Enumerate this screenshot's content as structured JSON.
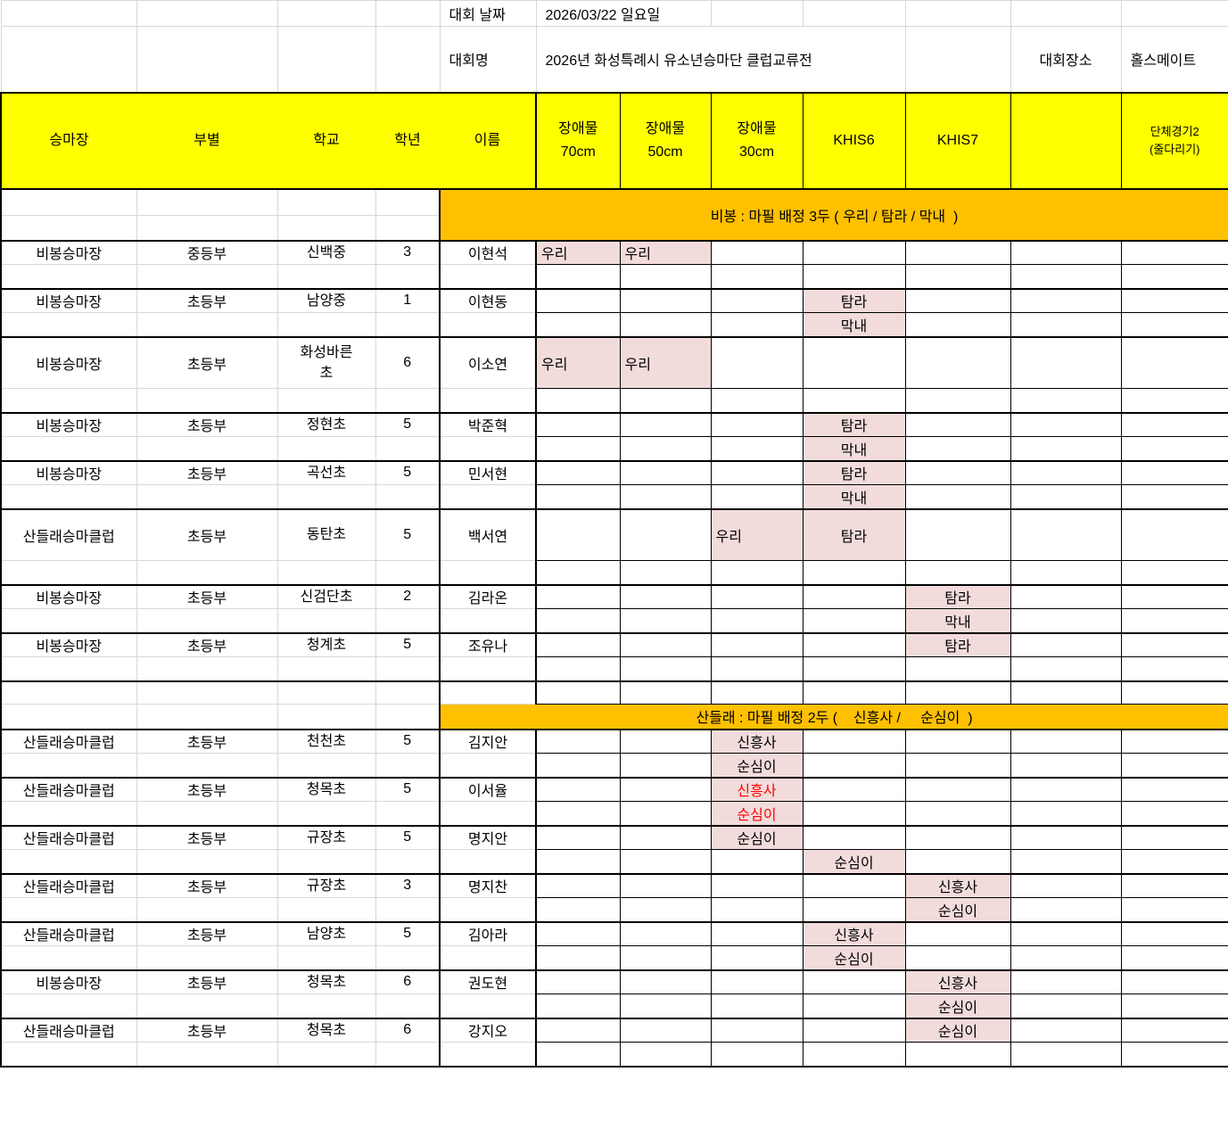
{
  "meta": {
    "date_label": "대회 날짜",
    "date_value": "2026/03/22 일요일",
    "name_label": "대회명",
    "name_value": "2026년 화성특례시 유소년승마단 클럽교류전",
    "venue_label": "대회장소",
    "venue_value": "홀스메이트"
  },
  "header": {
    "columns": [
      "승마장",
      "부별",
      "학교",
      "학년",
      "이름",
      "장애물\n70cm",
      "장애물\n50cm",
      "장애물\n30cm",
      "KHIS6",
      "KHIS7",
      "",
      "단체경기2\n(줄다리기)"
    ]
  },
  "sections": [
    {
      "banner": "비봉 : 마필 배정 3두 ( 우리 / 탐라 / 막내  )",
      "horses": [
        "우리",
        "탐라",
        "막내"
      ],
      "groups": [
        {
          "venue": "비봉승마장",
          "division": "중등부",
          "school": "신백중",
          "grade": "3",
          "name": "이현석",
          "tall": false,
          "rows": [
            [
              {
                "col": "j70",
                "text": "우리",
                "align": "left"
              },
              {
                "col": "j50",
                "text": "우리",
                "align": "left"
              }
            ],
            []
          ]
        },
        {
          "venue": "비봉승마장",
          "division": "초등부",
          "school": "남양중",
          "grade": "1",
          "name": "이현동",
          "tall": false,
          "rows": [
            [
              {
                "col": "khis6",
                "text": "탐라"
              }
            ],
            [
              {
                "col": "khis6",
                "text": "막내"
              }
            ]
          ]
        },
        {
          "venue": "비봉승마장",
          "division": "초등부",
          "school": "화성바른\n초",
          "grade": "6",
          "name": "이소연",
          "tall": true,
          "rows": [
            [
              {
                "col": "j70",
                "text": "우리",
                "align": "left"
              },
              {
                "col": "j50",
                "text": "우리",
                "align": "left"
              }
            ],
            []
          ]
        },
        {
          "venue": "비봉승마장",
          "division": "초등부",
          "school": "정현초",
          "grade": "5",
          "name": "박준혁",
          "tall": false,
          "rows": [
            [
              {
                "col": "khis6",
                "text": "탐라"
              }
            ],
            [
              {
                "col": "khis6",
                "text": "막내"
              }
            ]
          ]
        },
        {
          "venue": "비봉승마장",
          "division": "초등부",
          "school": "곡선초",
          "grade": "5",
          "name": "민서현",
          "tall": false,
          "rows": [
            [
              {
                "col": "khis6",
                "text": "탐라"
              }
            ],
            [
              {
                "col": "khis6",
                "text": "막내"
              }
            ]
          ]
        },
        {
          "venue": "산들래승마클럽",
          "division": "초등부",
          "school": "동탄초",
          "grade": "5",
          "name": "백서연",
          "tall": true,
          "rows": [
            [
              {
                "col": "j30",
                "text": "우리",
                "align": "left"
              },
              {
                "col": "khis6",
                "text": "탐라"
              }
            ],
            []
          ]
        },
        {
          "venue": "비봉승마장",
          "division": "초등부",
          "school": "신검단초",
          "grade": "2",
          "name": "김라온",
          "tall": false,
          "rows": [
            [
              {
                "col": "khis7",
                "text": "탐라"
              }
            ],
            [
              {
                "col": "khis7",
                "text": "막내"
              }
            ]
          ]
        },
        {
          "venue": "비봉승마장",
          "division": "초등부",
          "school": "청계초",
          "grade": "5",
          "name": "조유나",
          "tall": false,
          "rows": [
            [
              {
                "col": "khis7",
                "text": "탐라"
              }
            ],
            []
          ]
        }
      ]
    },
    {
      "banner": "산들래 : 마필 배정 2두 (    신흥사 /     순심이  )",
      "horses": [
        "신흥사",
        "순심이"
      ],
      "groups": [
        {
          "venue": "산들래승마클럽",
          "division": "초등부",
          "school": "천천초",
          "grade": "5",
          "name": "김지안",
          "tall": false,
          "rows": [
            [
              {
                "col": "j30",
                "text": "신흥사"
              }
            ],
            [
              {
                "col": "j30",
                "text": "순심이"
              }
            ]
          ]
        },
        {
          "venue": "산들래승마클럽",
          "division": "초등부",
          "school": "청목초",
          "grade": "5",
          "name": "이서율",
          "tall": false,
          "rows": [
            [
              {
                "col": "j30",
                "text": "신흥사",
                "red": true
              }
            ],
            [
              {
                "col": "j30",
                "text": "순심이",
                "red": true
              }
            ]
          ]
        },
        {
          "venue": "산들래승마클럽",
          "division": "초등부",
          "school": "규장초",
          "grade": "5",
          "name": "명지안",
          "tall": false,
          "rows": [
            [
              {
                "col": "j30",
                "text": "순심이"
              }
            ],
            [
              {
                "col": "khis6",
                "text": "순심이"
              }
            ]
          ]
        },
        {
          "venue": "산들래승마클럽",
          "division": "초등부",
          "school": "규장초",
          "grade": "3",
          "name": "명지찬",
          "tall": false,
          "rows": [
            [
              {
                "col": "khis7",
                "text": "신흥사"
              }
            ],
            [
              {
                "col": "khis7",
                "text": "순심이"
              }
            ]
          ]
        },
        {
          "venue": "산들래승마클럽",
          "division": "초등부",
          "school": "남양초",
          "grade": "5",
          "name": "김아라",
          "tall": false,
          "rows": [
            [
              {
                "col": "khis6",
                "text": "신흥사"
              }
            ],
            [
              {
                "col": "khis6",
                "text": "순심이"
              }
            ]
          ]
        },
        {
          "venue": "비봉승마장",
          "division": "초등부",
          "school": "청목초",
          "grade": "6",
          "name": "권도현",
          "tall": false,
          "rows": [
            [
              {
                "col": "khis7",
                "text": "신흥사"
              }
            ],
            [
              {
                "col": "khis7",
                "text": "순심이"
              }
            ]
          ]
        },
        {
          "venue": "산들래승마클럽",
          "division": "초등부",
          "school": "청목초",
          "grade": "6",
          "name": "강지오",
          "tall": false,
          "rows": [
            [
              {
                "col": "khis7",
                "text": "순심이"
              }
            ],
            []
          ]
        }
      ]
    }
  ],
  "colors": {
    "header_bg": "#ffff00",
    "banner_bg": "#ffc000",
    "assignment_bg": "#f2dcdb",
    "alert_text": "#ff0000",
    "gridline": "#d8d8d8"
  }
}
